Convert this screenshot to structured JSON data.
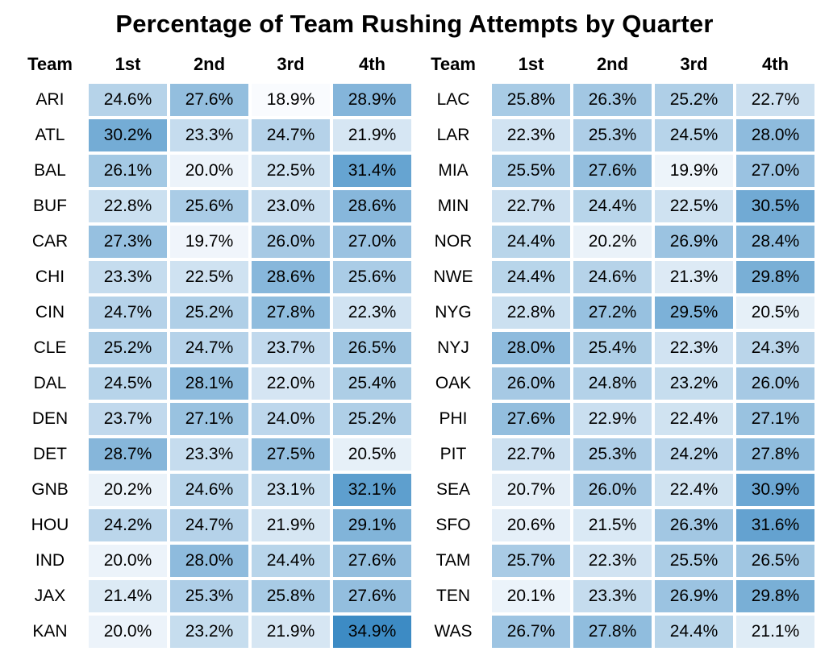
{
  "chart_data": {
    "type": "heatmap",
    "title": "Percentage of Team Rushing Attempts by Quarter",
    "columns": [
      "Team",
      "1st",
      "2nd",
      "3rd",
      "4th"
    ],
    "value_suffix": "%",
    "scale": {
      "min": 18.9,
      "max": 34.9,
      "low_color": "#f9fbfe",
      "high_color": "#3d8bc4"
    },
    "tables": [
      {
        "side": "left",
        "rows": [
          {
            "team": "ARI",
            "values": [
              24.6,
              27.6,
              18.9,
              28.9
            ]
          },
          {
            "team": "ATL",
            "values": [
              30.2,
              23.3,
              24.7,
              21.9
            ]
          },
          {
            "team": "BAL",
            "values": [
              26.1,
              20.0,
              22.5,
              31.4
            ]
          },
          {
            "team": "BUF",
            "values": [
              22.8,
              25.6,
              23.0,
              28.6
            ]
          },
          {
            "team": "CAR",
            "values": [
              27.3,
              19.7,
              26.0,
              27.0
            ]
          },
          {
            "team": "CHI",
            "values": [
              23.3,
              22.5,
              28.6,
              25.6
            ]
          },
          {
            "team": "CIN",
            "values": [
              24.7,
              25.2,
              27.8,
              22.3
            ]
          },
          {
            "team": "CLE",
            "values": [
              25.2,
              24.7,
              23.7,
              26.5
            ]
          },
          {
            "team": "DAL",
            "values": [
              24.5,
              28.1,
              22.0,
              25.4
            ]
          },
          {
            "team": "DEN",
            "values": [
              23.7,
              27.1,
              24.0,
              25.2
            ]
          },
          {
            "team": "DET",
            "values": [
              28.7,
              23.3,
              27.5,
              20.5
            ]
          },
          {
            "team": "GNB",
            "values": [
              20.2,
              24.6,
              23.1,
              32.1
            ]
          },
          {
            "team": "HOU",
            "values": [
              24.2,
              24.7,
              21.9,
              29.1
            ]
          },
          {
            "team": "IND",
            "values": [
              20.0,
              28.0,
              24.4,
              27.6
            ]
          },
          {
            "team": "JAX",
            "values": [
              21.4,
              25.3,
              25.8,
              27.6
            ]
          },
          {
            "team": "KAN",
            "values": [
              20.0,
              23.2,
              21.9,
              34.9
            ]
          }
        ]
      },
      {
        "side": "right",
        "rows": [
          {
            "team": "LAC",
            "values": [
              25.8,
              26.3,
              25.2,
              22.7
            ]
          },
          {
            "team": "LAR",
            "values": [
              22.3,
              25.3,
              24.5,
              28.0
            ]
          },
          {
            "team": "MIA",
            "values": [
              25.5,
              27.6,
              19.9,
              27.0
            ]
          },
          {
            "team": "MIN",
            "values": [
              22.7,
              24.4,
              22.5,
              30.5
            ]
          },
          {
            "team": "NOR",
            "values": [
              24.4,
              20.2,
              26.9,
              28.4
            ]
          },
          {
            "team": "NWE",
            "values": [
              24.4,
              24.6,
              21.3,
              29.8
            ]
          },
          {
            "team": "NYG",
            "values": [
              22.8,
              27.2,
              29.5,
              20.5
            ]
          },
          {
            "team": "NYJ",
            "values": [
              28.0,
              25.4,
              22.3,
              24.3
            ]
          },
          {
            "team": "OAK",
            "values": [
              26.0,
              24.8,
              23.2,
              26.0
            ]
          },
          {
            "team": "PHI",
            "values": [
              27.6,
              22.9,
              22.4,
              27.1
            ]
          },
          {
            "team": "PIT",
            "values": [
              22.7,
              25.3,
              24.2,
              27.8
            ]
          },
          {
            "team": "SEA",
            "values": [
              20.7,
              26.0,
              22.4,
              30.9
            ]
          },
          {
            "team": "SFO",
            "values": [
              20.6,
              21.5,
              26.3,
              31.6
            ]
          },
          {
            "team": "TAM",
            "values": [
              25.7,
              22.3,
              25.5,
              26.5
            ]
          },
          {
            "team": "TEN",
            "values": [
              20.1,
              23.3,
              26.9,
              29.8
            ]
          },
          {
            "team": "WAS",
            "values": [
              26.7,
              27.8,
              24.4,
              21.1
            ]
          }
        ]
      }
    ]
  }
}
